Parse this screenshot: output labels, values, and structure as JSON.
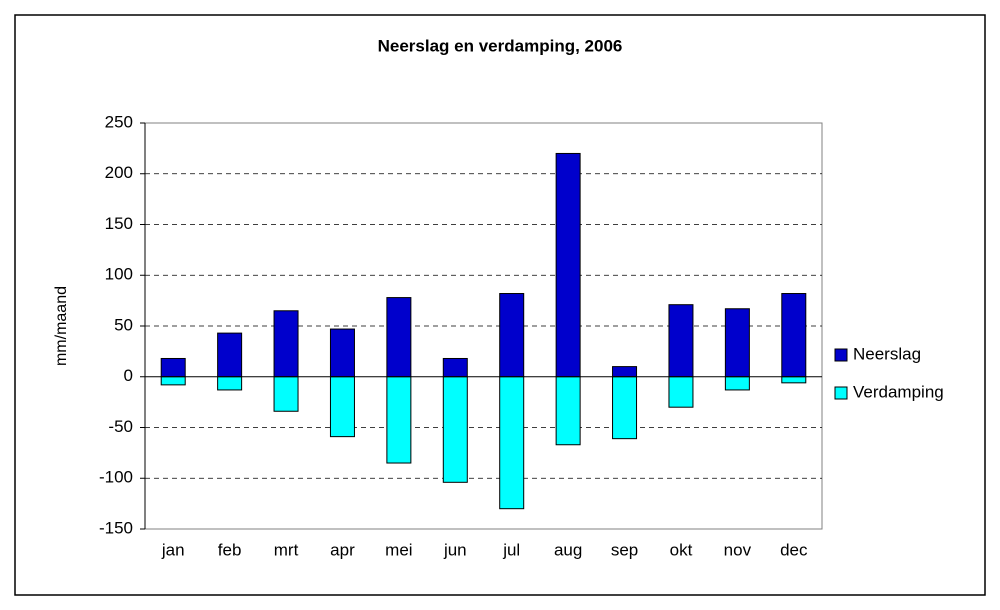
{
  "chart_data": {
    "type": "bar",
    "stacked": true,
    "title": "Neerslag en verdamping, 2006",
    "y_label": "mm/maand",
    "categories": [
      "jan",
      "feb",
      "mrt",
      "apr",
      "mei",
      "jun",
      "jul",
      "aug",
      "sep",
      "okt",
      "nov",
      "dec"
    ],
    "series": [
      {
        "name": "Neerslag",
        "color": "#0000cc",
        "values": [
          18,
          43,
          65,
          47,
          78,
          18,
          82,
          220,
          10,
          71,
          67,
          82
        ]
      },
      {
        "name": "Verdamping",
        "color": "#00ffff",
        "values": [
          -8,
          -13,
          -34,
          -59,
          -85,
          -104,
          -130,
          -67,
          -61,
          -30,
          -13,
          -6
        ]
      }
    ],
    "ylim": [
      -150,
      250
    ],
    "yticks": [
      -150,
      -100,
      -50,
      0,
      50,
      100,
      150,
      200,
      250
    ],
    "grid": true,
    "legend": "right"
  }
}
